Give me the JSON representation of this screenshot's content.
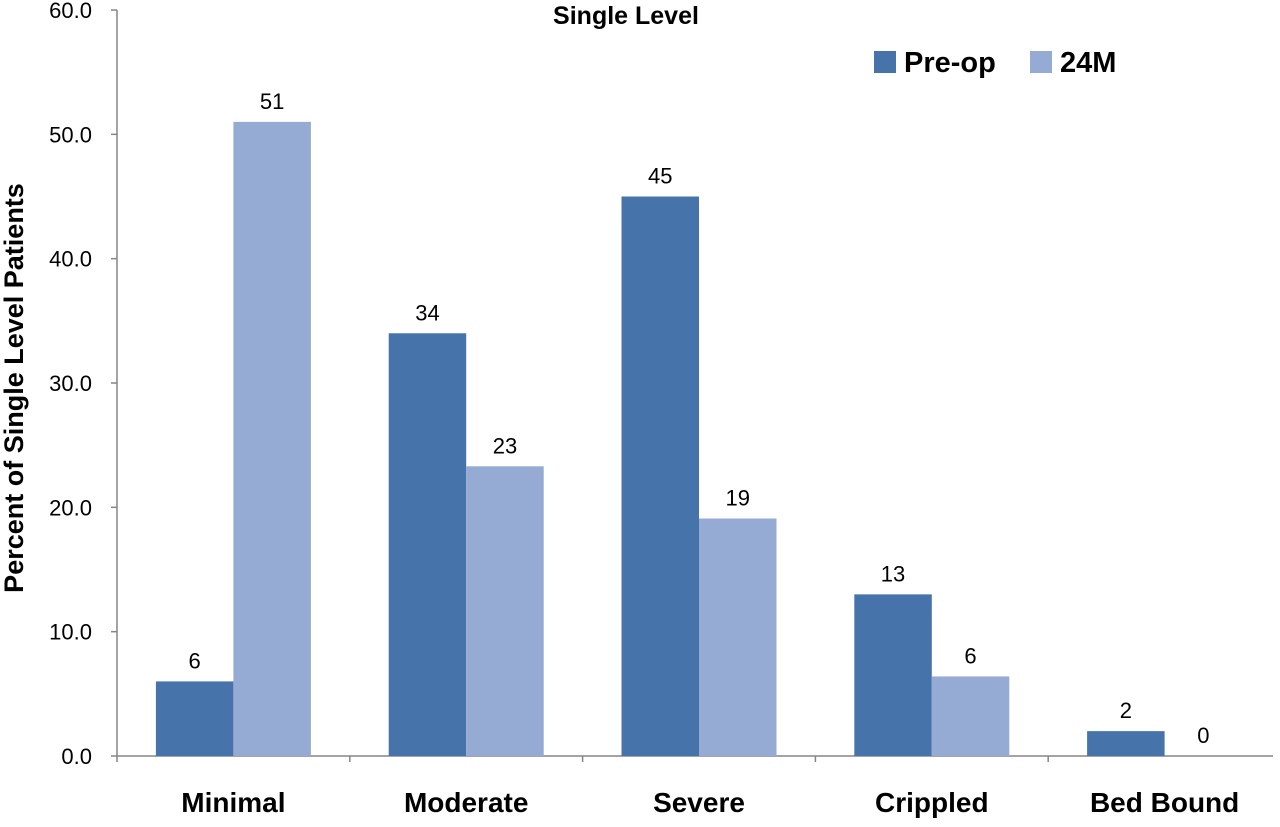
{
  "chart_data": {
    "type": "bar",
    "title": "Single Level",
    "xlabel": "",
    "ylabel": "Percent of  Single Level Patients",
    "categories": [
      "Minimal",
      "Moderate",
      "Severe",
      "Crippled",
      "Bed Bound"
    ],
    "series": [
      {
        "name": "Pre-op",
        "color": "#4674AA",
        "values": [
          6,
          34,
          45,
          13,
          2
        ],
        "labels": [
          "6",
          "34",
          "45",
          "13",
          "2"
        ]
      },
      {
        "name": "24M",
        "color": "#95ABD3",
        "values": [
          51,
          23.3,
          19.1,
          6.4,
          0
        ],
        "labels": [
          "51",
          "23",
          "19",
          "6",
          "0"
        ]
      }
    ],
    "ylim": [
      0,
      60
    ],
    "yticks": [
      0,
      10,
      20,
      30,
      40,
      50,
      60
    ],
    "ytick_labels": [
      "0.0",
      "10.0",
      "20.0",
      "30.0",
      "40.0",
      "50.0",
      "60.0"
    ],
    "grid": false,
    "legend_position": "top-right"
  }
}
